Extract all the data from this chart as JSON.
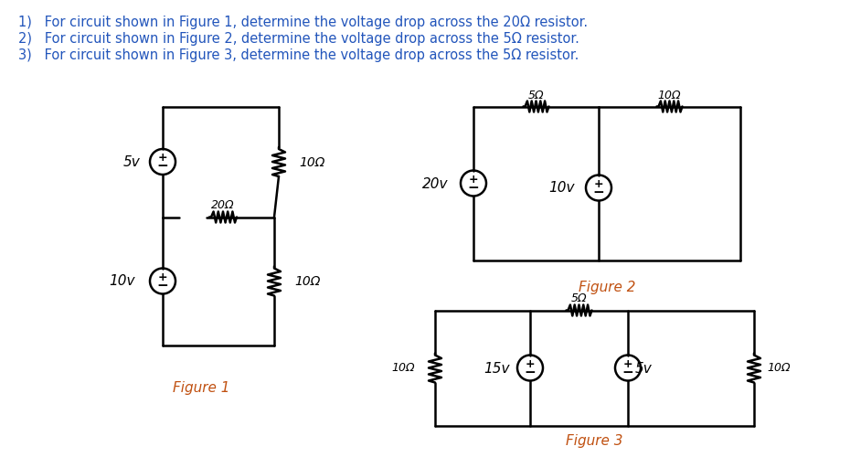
{
  "title_lines": [
    "1)   For circuit shown in Figure 1, determine the voltage drop across the 20Ω resistor.",
    "2)   For circuit shown in Figure 2, determine the voltage drop across the 5Ω resistor.",
    "3)   For circuit shown in Figure 3, determine the voltage drop across the 5Ω resistor."
  ],
  "title_color": "#2255bb",
  "figure_label_color": "#c05010",
  "background_color": "#ffffff",
  "fig1_label": "Figure 1",
  "fig2_label": "Figure 2",
  "fig3_label": "Figure 3"
}
